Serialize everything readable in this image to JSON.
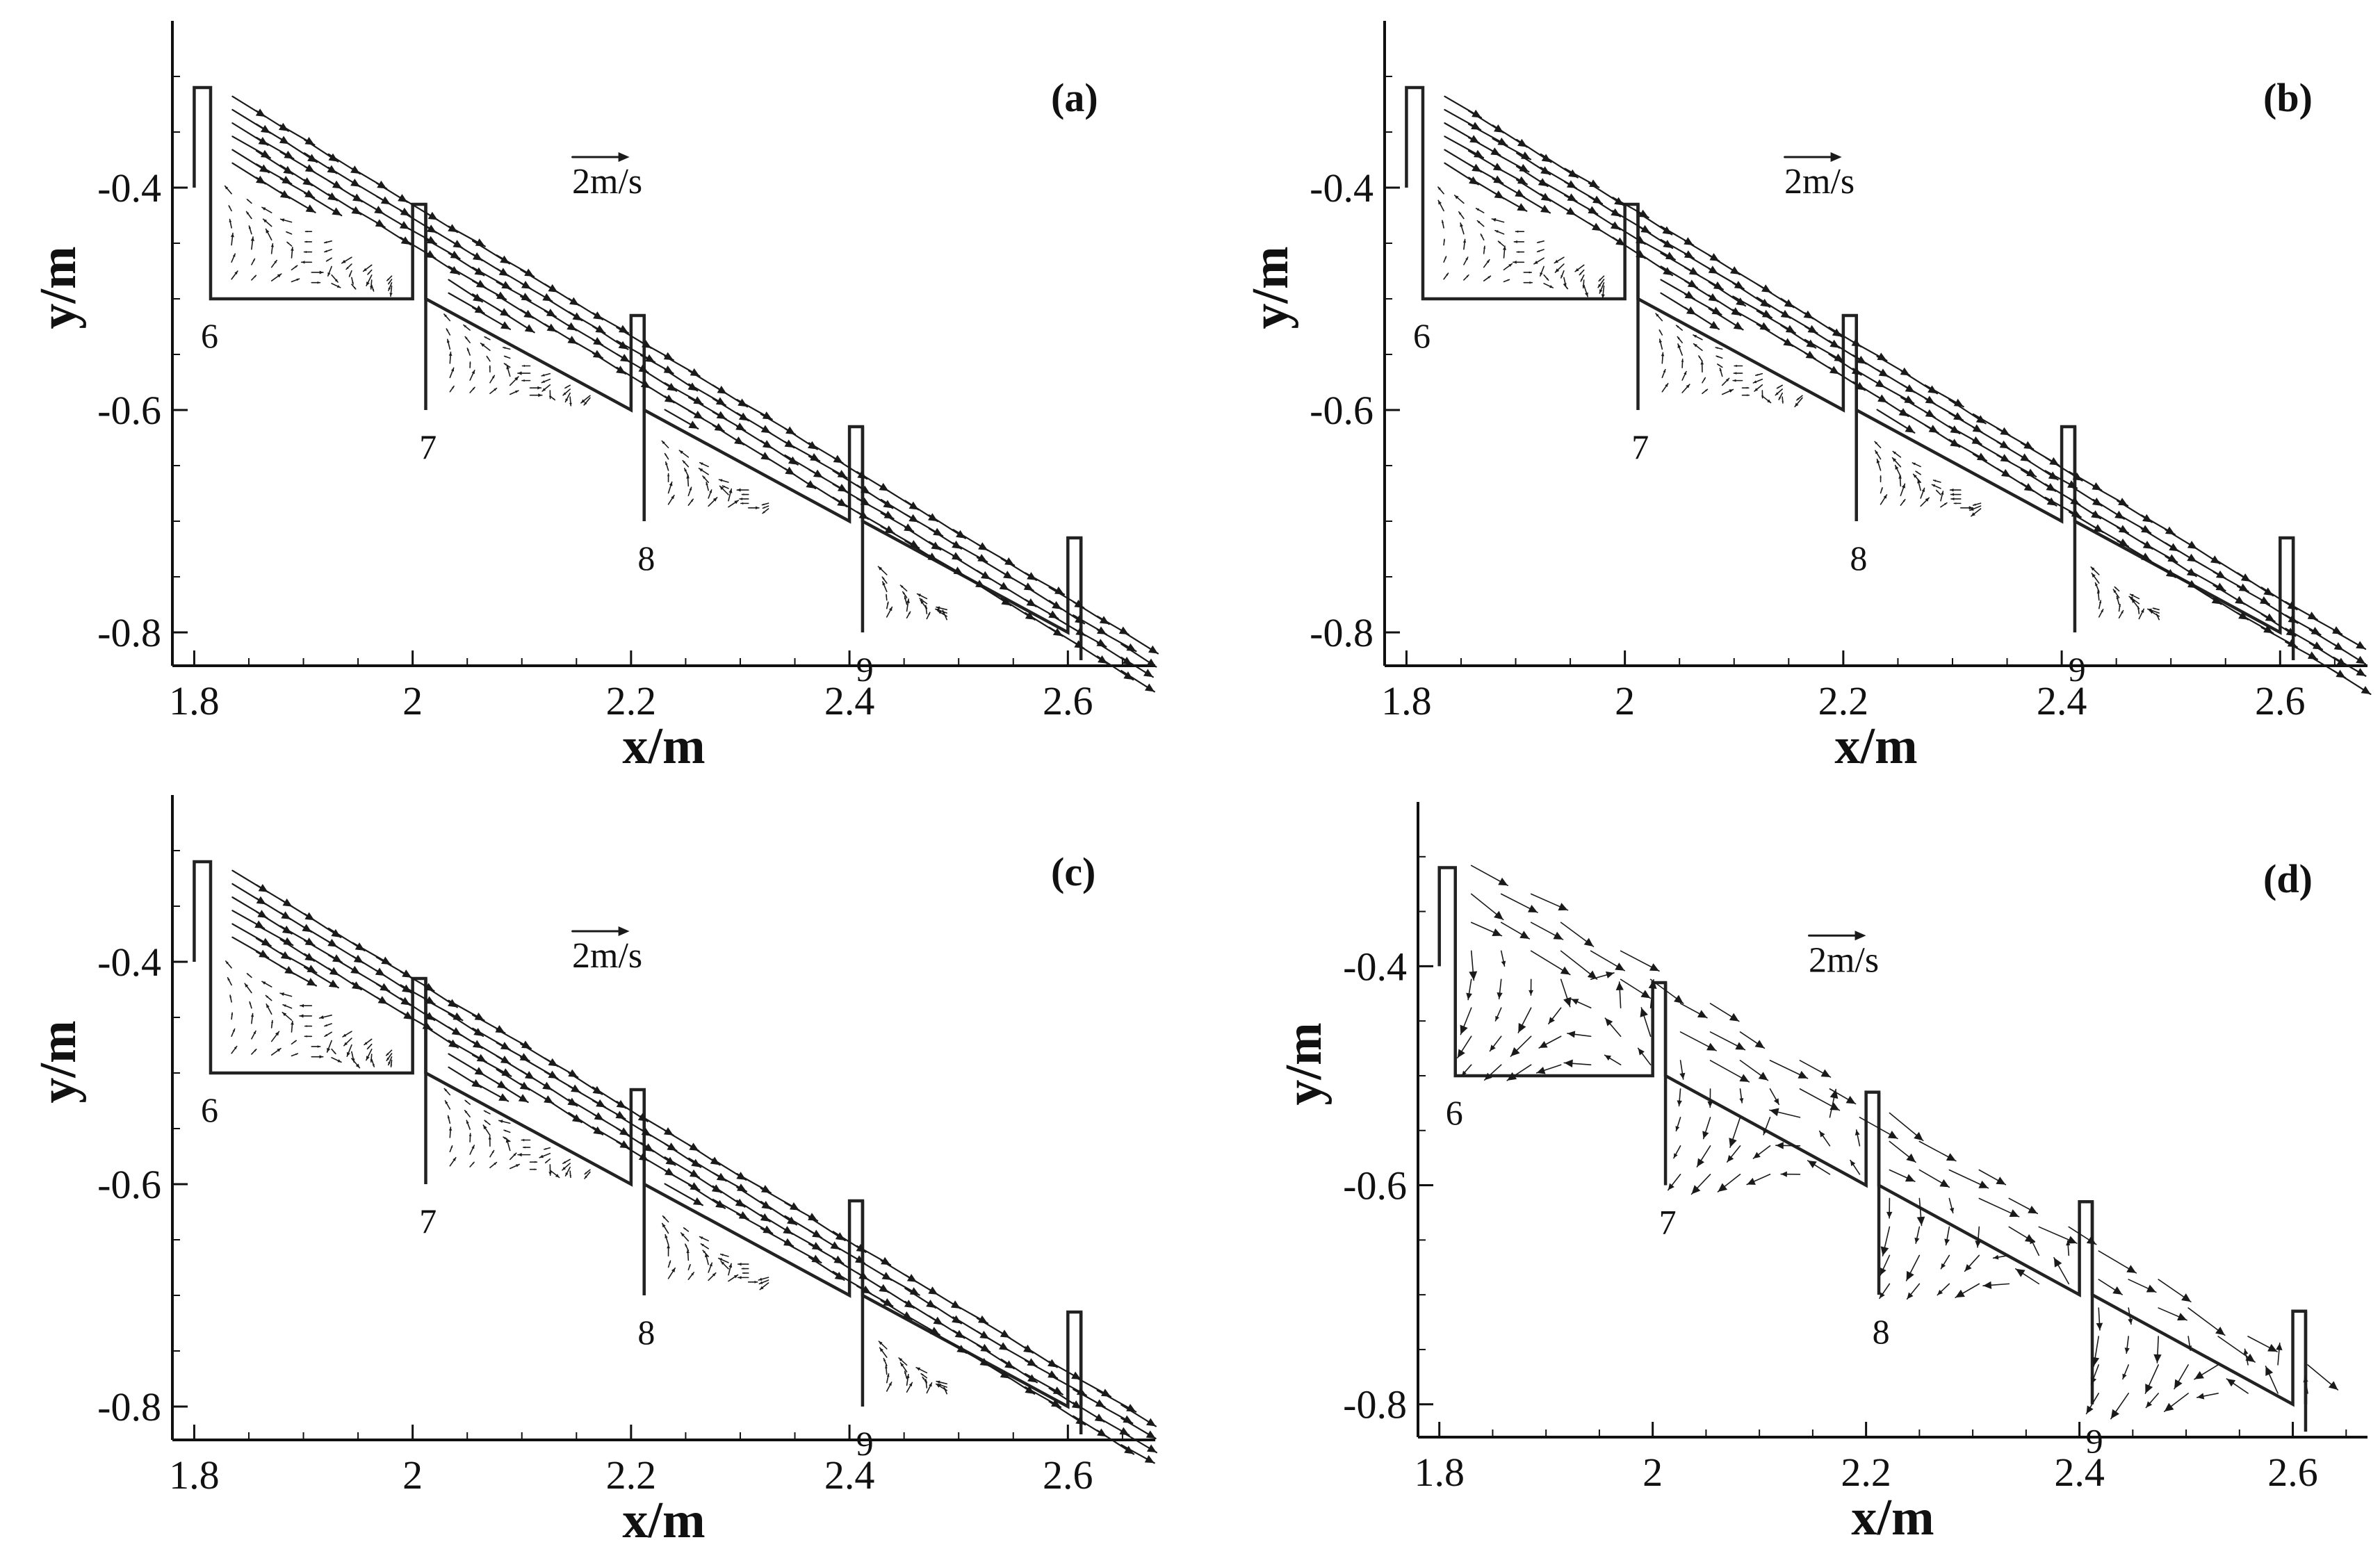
{
  "chart_data": [
    {
      "type": "scatter",
      "panel_label": "(a)",
      "xlabel": "x/m",
      "ylabel": "y/m",
      "xlim": [
        1.78,
        2.68
      ],
      "ylim": [
        -0.83,
        -0.25
      ],
      "xticks": [
        "1.8",
        "2",
        "2.2",
        "2.4",
        "2.6"
      ],
      "yticks": [
        "-0.4",
        "-0.6",
        "-0.8"
      ],
      "reference_vector_label": "2m/s",
      "step_labels": [
        "6",
        "7",
        "8",
        "9"
      ],
      "flow": "skimming"
    },
    {
      "type": "scatter",
      "panel_label": "(b)",
      "xlabel": "x/m",
      "ylabel": "y/m",
      "xlim": [
        1.78,
        2.68
      ],
      "ylim": [
        -0.83,
        -0.25
      ],
      "xticks": [
        "1.8",
        "2",
        "2.2",
        "2.4",
        "2.6"
      ],
      "yticks": [
        "-0.4",
        "-0.6",
        "-0.8"
      ],
      "reference_vector_label": "2m/s",
      "step_labels": [
        "6",
        "7",
        "8",
        "9"
      ],
      "flow": "skimming"
    },
    {
      "type": "scatter",
      "panel_label": "(c)",
      "xlabel": "x/m",
      "ylabel": "y/m",
      "xlim": [
        1.78,
        2.68
      ],
      "ylim": [
        -0.83,
        -0.25
      ],
      "xticks": [
        "1.8",
        "2",
        "2.2",
        "2.4",
        "2.6"
      ],
      "yticks": [
        "-0.4",
        "-0.6",
        "-0.8"
      ],
      "reference_vector_label": "2m/s",
      "step_labels": [
        "6",
        "7",
        "8",
        "9"
      ],
      "flow": "skimming"
    },
    {
      "type": "scatter",
      "panel_label": "(d)",
      "xlabel": "x/m",
      "ylabel": "y/m",
      "xlim": [
        1.78,
        2.67
      ],
      "ylim": [
        -0.83,
        -0.25
      ],
      "xticks": [
        "1.8",
        "2",
        "2.2",
        "2.4",
        "2.6"
      ],
      "yticks": [
        "-0.4",
        "-0.6",
        "-0.8"
      ],
      "reference_vector_label": "2m/s",
      "step_labels": [
        "6",
        "7",
        "8",
        "9"
      ],
      "flow": "recirculating"
    }
  ],
  "steps": [
    {
      "label": "6",
      "x_start": 1.815,
      "x_end": 2.0,
      "y_bottom": -0.5,
      "lip_top": -0.415
    },
    {
      "label": "7",
      "x_start": 2.015,
      "x_end": 2.2,
      "y_bottom": -0.6,
      "lip_top": -0.515
    },
    {
      "label": "8",
      "x_start": 2.215,
      "x_end": 2.4,
      "y_bottom": -0.7,
      "lip_top": -0.615
    },
    {
      "label": "9",
      "x_start": 2.415,
      "x_end": 2.6,
      "y_bottom": -0.8,
      "lip_top": -0.715
    }
  ],
  "wall": {
    "x_left": 1.8,
    "x_right": 1.815,
    "y_top": -0.31,
    "y_notch": -0.4,
    "y_step_bottom": -0.5
  }
}
